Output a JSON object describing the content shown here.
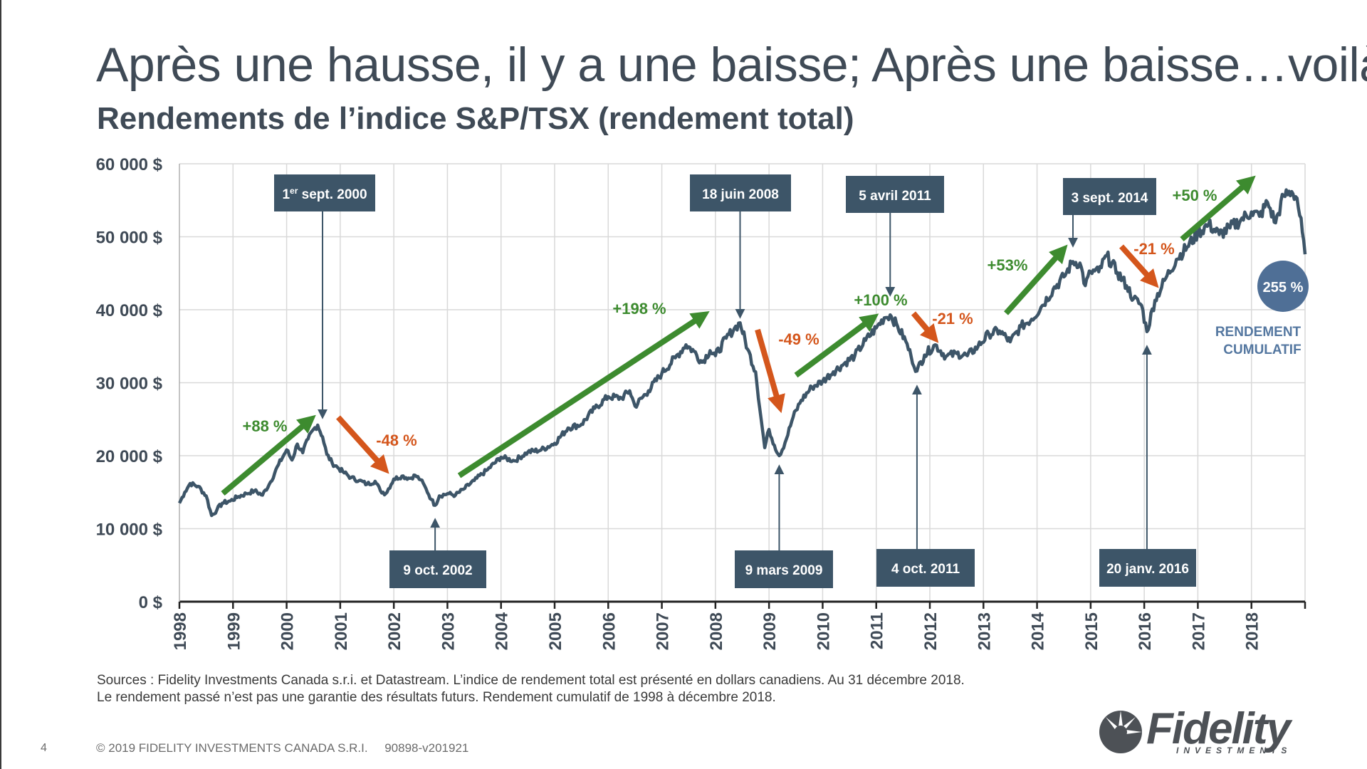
{
  "slide": {
    "title": "Après une hausse, il y a une baisse; Après une baisse…voilà!",
    "subtitle": "Rendements de l’indice S&P/TSX (rendement total)",
    "sources_line1": "Sources : Fidelity Investments Canada s.r.i. et Datastream. L’indice de rendement total est présenté en dollars canadiens. Au 31 décembre 2018.",
    "sources_line2": "Le rendement passé n’est pas une garantie des résultats futurs. Rendement cumulatif de 1998 à décembre 2018.",
    "page_number": "4",
    "copyright": "© 2019 FIDELITY INVESTMENTS CANADA S.R.I.     90898-v201921",
    "logo_text": "Fidelity",
    "logo_subtext": "INVESTMENTS"
  },
  "chart_data": {
    "type": "line",
    "title": "Rendements de l’indice S&P/TSX (rendement total)",
    "xlabel": "",
    "ylabel": "",
    "xlim": [
      1998.0,
      2019.0
    ],
    "ylim": [
      0,
      60000
    ],
    "y_ticks": [
      0,
      10000,
      20000,
      30000,
      40000,
      50000,
      60000
    ],
    "y_tick_labels": [
      "0 $",
      "10 000 $",
      "20 000 $",
      "30 000 $",
      "40 000 $",
      "50 000 $",
      "60 000 $"
    ],
    "x_ticks": [
      1998,
      1999,
      2000,
      2001,
      2002,
      2003,
      2004,
      2005,
      2006,
      2007,
      2008,
      2009,
      2010,
      2011,
      2012,
      2013,
      2014,
      2015,
      2016,
      2017,
      2018
    ],
    "x_tick_labels": [
      "1998",
      "1999",
      "2000",
      "2001",
      "2002",
      "2003",
      "2004",
      "2005",
      "2006",
      "2007",
      "2008",
      "2009",
      "2010",
      "2011",
      "2012",
      "2013",
      "2014",
      "2015",
      "2016",
      "2017",
      "2018"
    ],
    "grid": true,
    "colors": {
      "line": "#3d5568",
      "up": "#3d8b2f",
      "down": "#d4561c",
      "box": "#3d5568",
      "circle": "#4f6f96",
      "cumul_text": "#5477a0",
      "grid": "#d9d9d9"
    },
    "series": [
      {
        "x": [
          1998.0,
          1998.1,
          1998.2,
          1998.35,
          1998.5,
          1998.6,
          1998.7,
          1998.8,
          1998.95,
          1999.1,
          1999.25,
          1999.4,
          1999.55,
          1999.7,
          1999.85,
          2000.0,
          2000.1,
          2000.2,
          2000.3,
          2000.4,
          2000.5,
          2000.58,
          2000.67,
          2000.75,
          2000.85,
          2000.95,
          2001.05,
          2001.2,
          2001.35,
          2001.5,
          2001.65,
          2001.75,
          2001.85,
          2002.0,
          2002.15,
          2002.3,
          2002.4,
          2002.5,
          2002.6,
          2002.7,
          2002.77,
          2002.85,
          2003.0,
          2003.15,
          2003.3,
          2003.5,
          2003.75,
          2004.0,
          2004.25,
          2004.5,
          2004.75,
          2005.0,
          2005.25,
          2005.5,
          2005.75,
          2006.0,
          2006.25,
          2006.4,
          2006.5,
          2006.75,
          2007.0,
          2007.25,
          2007.45,
          2007.6,
          2007.75,
          2007.9,
          2008.0,
          2008.2,
          2008.35,
          2008.46,
          2008.6,
          2008.75,
          2008.85,
          2008.92,
          2009.0,
          2009.1,
          2009.19,
          2009.3,
          2009.45,
          2009.6,
          2009.8,
          2010.0,
          2010.2,
          2010.4,
          2010.6,
          2010.8,
          2011.0,
          2011.15,
          2011.26,
          2011.4,
          2011.55,
          2011.65,
          2011.76,
          2011.9,
          2012.1,
          2012.3,
          2012.5,
          2012.7,
          2012.9,
          2013.1,
          2013.3,
          2013.5,
          2013.7,
          2013.9,
          2014.1,
          2014.3,
          2014.5,
          2014.67,
          2014.8,
          2014.9,
          2015.0,
          2015.15,
          2015.3,
          2015.5,
          2015.67,
          2015.8,
          2015.95,
          2016.05,
          2016.2,
          2016.4,
          2016.6,
          2016.8,
          2017.0,
          2017.2,
          2017.4,
          2017.6,
          2017.8,
          2018.0,
          2018.15,
          2018.3,
          2018.45,
          2018.6,
          2018.75,
          2018.85,
          2018.95,
          2019.0
        ],
        "values": [
          13500,
          15000,
          16200,
          15800,
          14500,
          11800,
          12600,
          13500,
          13800,
          14400,
          14800,
          15200,
          14600,
          16400,
          18800,
          20800,
          19400,
          21600,
          20400,
          22300,
          23600,
          24200,
          22600,
          20200,
          19000,
          18400,
          17800,
          17000,
          16600,
          16100,
          16500,
          15200,
          14800,
          16800,
          17200,
          16900,
          17300,
          16700,
          15500,
          14000,
          13200,
          14500,
          14800,
          14600,
          15400,
          16600,
          18100,
          19800,
          19300,
          20500,
          20800,
          21700,
          23800,
          24300,
          26500,
          28100,
          27900,
          28900,
          26800,
          28900,
          31300,
          33400,
          35200,
          34300,
          32800,
          34400,
          33700,
          36100,
          37400,
          38200,
          34600,
          31500,
          25200,
          21100,
          23600,
          21400,
          20000,
          21800,
          25300,
          27600,
          29400,
          30200,
          31500,
          32600,
          33700,
          35800,
          37500,
          38900,
          39300,
          37700,
          35700,
          33600,
          31600,
          33800,
          35200,
          33600,
          34000,
          33700,
          35000,
          36700,
          37100,
          35600,
          37700,
          38700,
          40600,
          42800,
          44500,
          46600,
          46400,
          43300,
          45200,
          45200,
          47400,
          45100,
          43300,
          41500,
          40600,
          37000,
          41300,
          44300,
          46900,
          48600,
          50500,
          51700,
          50300,
          51200,
          52300,
          53400,
          52800,
          54700,
          51900,
          55600,
          56200,
          55300,
          50600,
          47600
        ]
      }
    ],
    "events": [
      {
        "label": "1er sept. 2000",
        "sup": "er",
        "x": 2000.67,
        "value": 24200,
        "position": "above"
      },
      {
        "label": "18 juin 2008",
        "x": 2008.46,
        "value": 38200,
        "position": "above"
      },
      {
        "label": "5 avril 2011",
        "x": 2011.26,
        "value": 39300,
        "position": "above"
      },
      {
        "label": "3 sept. 2014",
        "x": 2014.67,
        "value": 47400,
        "position": "above"
      },
      {
        "label": "9 oct. 2002",
        "x": 2002.77,
        "value": 13200,
        "position": "below"
      },
      {
        "label": "9 mars 2009",
        "x": 2009.19,
        "value": 20000,
        "position": "below"
      },
      {
        "label": "4 oct. 2011",
        "x": 2011.76,
        "value": 31600,
        "position": "below"
      },
      {
        "label": "20 janv. 2016",
        "x": 2016.05,
        "value": 37000,
        "position": "below"
      }
    ],
    "annotations": [
      {
        "text": "+88 %",
        "direction": "up"
      },
      {
        "text": "-48 %",
        "direction": "down"
      },
      {
        "text": "+198 %",
        "direction": "up"
      },
      {
        "text": "-49 %",
        "direction": "down"
      },
      {
        "text": "+100 %",
        "direction": "up"
      },
      {
        "text": "-21 %",
        "direction": "down"
      },
      {
        "text": "+53%",
        "direction": "up"
      },
      {
        "text": "-21 %",
        "direction": "down"
      },
      {
        "text": "+50 %",
        "direction": "up"
      }
    ],
    "cumulative": {
      "value_label": "255 %",
      "label_line1": "RENDEMENT",
      "label_line2": "CUMULATIF"
    }
  }
}
